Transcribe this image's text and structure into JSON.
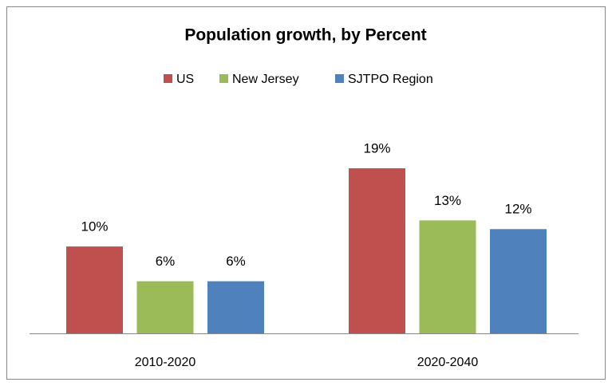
{
  "chart_data": {
    "type": "bar",
    "title": "Population growth, by Percent",
    "categories": [
      "2010-2020",
      "2020-2040"
    ],
    "series": [
      {
        "name": "US",
        "color": "#c0504d",
        "values": [
          10,
          19
        ],
        "value_labels": [
          "10%",
          "19%"
        ]
      },
      {
        "name": "New Jersey",
        "color": "#9bbb59",
        "values": [
          6,
          13
        ],
        "value_labels": [
          "6%",
          "13%"
        ]
      },
      {
        "name": "SJTPO Region",
        "color": "#4f81bd",
        "values": [
          6,
          12
        ],
        "value_labels": [
          "6%",
          "12%"
        ]
      }
    ],
    "legend": "top"
  }
}
